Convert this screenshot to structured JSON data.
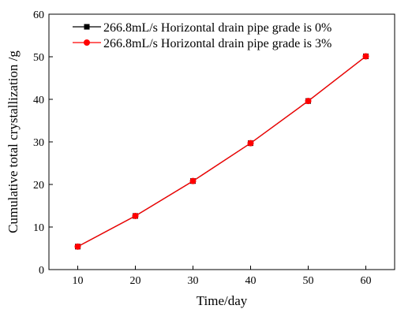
{
  "chart_data": {
    "type": "line",
    "x": [
      10,
      20,
      30,
      40,
      50,
      60
    ],
    "xlabel": "Time/day",
    "ylabel": "Cumulative total crystallization /g",
    "xlim": [
      5,
      65
    ],
    "ylim": [
      0,
      60
    ],
    "xticks": [
      10,
      20,
      30,
      40,
      50,
      60
    ],
    "yticks": [
      0,
      10,
      20,
      30,
      40,
      50,
      60
    ],
    "grid": false,
    "legend_position": "top-right",
    "series": [
      {
        "name": "266.8mL/s Horizontal drain pipe grade is 0%",
        "values": [
          5.4,
          12.6,
          20.8,
          29.7,
          39.6,
          50.1
        ],
        "color": "#000000",
        "marker": "square"
      },
      {
        "name": "266.8mL/s Horizontal drain pipe grade is 3%",
        "values": [
          5.4,
          12.6,
          20.8,
          29.7,
          39.6,
          50.1
        ],
        "color": "#ff0000",
        "marker": "circle"
      }
    ]
  }
}
